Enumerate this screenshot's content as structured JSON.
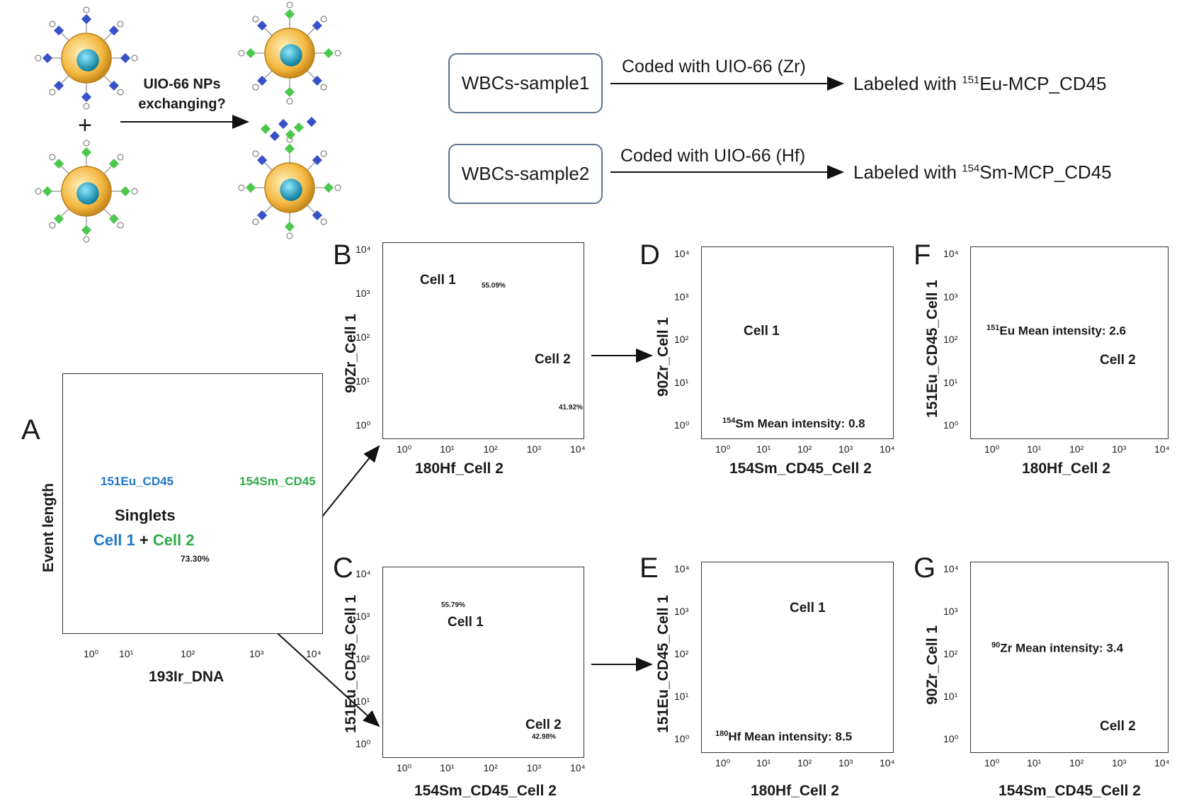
{
  "schematic": {
    "exchange_label_line1": "UIO-66 NPs",
    "exchange_label_line2": "exchanging?",
    "plus": "+"
  },
  "flow": {
    "sample1": "WBCs-sample1",
    "sample2": "WBCs-sample2",
    "coded1": "Coded with UIO-66 (Zr)",
    "coded2": "Coded with UIO-66 (Hf)",
    "labeled1_prefix": "Labeled with ",
    "labeled1_sup": "151",
    "labeled1_suffix": "Eu-MCP_CD45",
    "labeled2_prefix": "Labeled with ",
    "labeled2_sup": "154",
    "labeled2_suffix": "Sm-MCP_CD45"
  },
  "panelA": {
    "letter": "A",
    "xlabel": "193Ir_DNA",
    "ylabel": "Event length",
    "xticks": [
      "10⁰",
      "10¹",
      "10²",
      "10³",
      "10⁴"
    ],
    "antibody1": "151Eu_CD45",
    "antibody2": "154Sm_CD45",
    "singlets": "Singlets",
    "cell1": "Cell 1",
    "plus": "+",
    "cell2": "Cell 2",
    "gate_pct": "73.30%"
  },
  "panelB": {
    "letter": "B",
    "xlabel": "180Hf_Cell 2",
    "ylabel": "90Zr_Cell 1",
    "xticks": [
      "10⁰",
      "10¹",
      "10²",
      "10³",
      "10⁴"
    ],
    "yticks": [
      "10⁴",
      "10³",
      "10²",
      "10¹",
      "10⁰"
    ],
    "cell1": "Cell 1",
    "cell2": "Cell 2",
    "pct1": "55.09%",
    "pct2": "41.92%"
  },
  "panelC": {
    "letter": "C",
    "xlabel": "154Sm_CD45_Cell 2",
    "ylabel": "151Eu_CD45_Cell 1",
    "xticks": [
      "10⁰",
      "10¹",
      "10²",
      "10³",
      "10⁴"
    ],
    "yticks": [
      "10⁴",
      "10³",
      "10²",
      "10¹",
      "10⁰"
    ],
    "cell1": "Cell 1",
    "cell2": "Cell 2",
    "pct1": "55.79%",
    "pct2": "42.98%"
  },
  "panelD": {
    "letter": "D",
    "xlabel": "154Sm_CD45_Cell 2",
    "ylabel": "90Zr_Cell 1",
    "xticks": [
      "10⁰",
      "10¹",
      "10²",
      "10³",
      "10⁴"
    ],
    "yticks": [
      "10⁴",
      "10³",
      "10²",
      "10¹",
      "10⁰"
    ],
    "cell": "Cell 1",
    "mean_sup": "154",
    "mean_text": "Sm Mean intensity: 0.8"
  },
  "panelE": {
    "letter": "E",
    "xlabel": "180Hf_Cell 2",
    "ylabel": "151Eu_CD45_Cell 1",
    "xticks": [
      "10⁰",
      "10¹",
      "10²",
      "10³",
      "10⁴"
    ],
    "yticks": [
      "10⁴",
      "10³",
      "10²",
      "10¹",
      "10⁰"
    ],
    "cell": "Cell 1",
    "mean_sup": "180",
    "mean_text": "Hf Mean intensity: 8.5"
  },
  "panelF": {
    "letter": "F",
    "xlabel": "180Hf_Cell 2",
    "ylabel": "151Eu_CD45_Cell 1",
    "xticks": [
      "10⁰",
      "10¹",
      "10²",
      "10³",
      "10⁴"
    ],
    "yticks": [
      "10⁴",
      "10³",
      "10²",
      "10¹",
      "10⁰"
    ],
    "cell": "Cell 2",
    "mean_sup": "151",
    "mean_text": "Eu Mean intensity: 2.6"
  },
  "panelG": {
    "letter": "G",
    "xlabel": "154Sm_CD45_Cell 2",
    "ylabel": "90Zr_Cell 1",
    "xticks": [
      "10⁰",
      "10¹",
      "10²",
      "10³",
      "10⁴"
    ],
    "yticks": [
      "10⁴",
      "10³",
      "10²",
      "10¹",
      "10⁰"
    ],
    "cell": "Cell 2",
    "mean_sup": "90",
    "mean_text": "Zr Mean intensity: 3.4"
  },
  "colors": {
    "cell1_blue": "#1f77c8",
    "cell2_green": "#2eaa4a",
    "gate_line": "#7fa3c8",
    "density_low": "#3b1560",
    "density_mid": "#c0392b",
    "density_high": "#ffe066"
  }
}
